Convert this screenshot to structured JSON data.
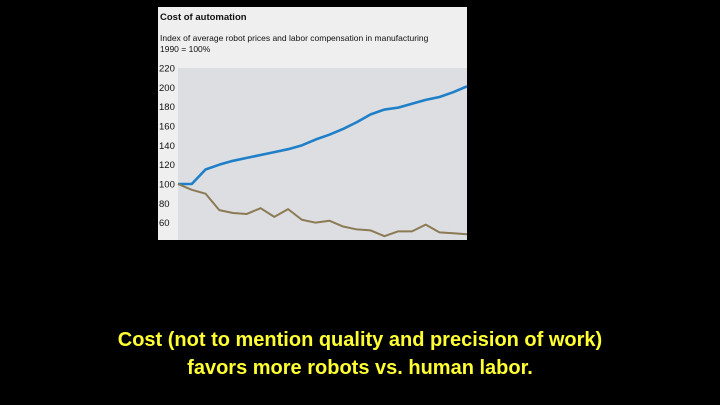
{
  "chart_data": {
    "type": "line",
    "title": "Cost of automation",
    "subtitle": "Index of average robot prices and labor compensation in manufacturing",
    "subtitle2": "1990 = 100%",
    "ylim": [
      40,
      220
    ],
    "yticks": [
      220,
      200,
      180,
      160,
      140,
      120,
      100,
      80,
      60
    ],
    "x": [
      0,
      1,
      2,
      3,
      4,
      5,
      6,
      7,
      8,
      9,
      10,
      11,
      12,
      13,
      14,
      15,
      16,
      17,
      18,
      19,
      20,
      21
    ],
    "grid": false,
    "series": [
      {
        "color": "#1f7fc8",
        "values": [
          100,
          100,
          115,
          120,
          124,
          127,
          130,
          133,
          136,
          140,
          146,
          151,
          157,
          164,
          172,
          177,
          179,
          183,
          187,
          190,
          195,
          201
        ]
      },
      {
        "color": "#8c7a55",
        "values": [
          100,
          94,
          90,
          73,
          70,
          69,
          75,
          66,
          74,
          63,
          60,
          62,
          56,
          53,
          52,
          46,
          51,
          51,
          58,
          50,
          49,
          48
        ]
      }
    ]
  },
  "caption": {
    "line1": "Cost (not to mention quality and precision of work)",
    "line2": "favors more robots vs. human labor."
  }
}
